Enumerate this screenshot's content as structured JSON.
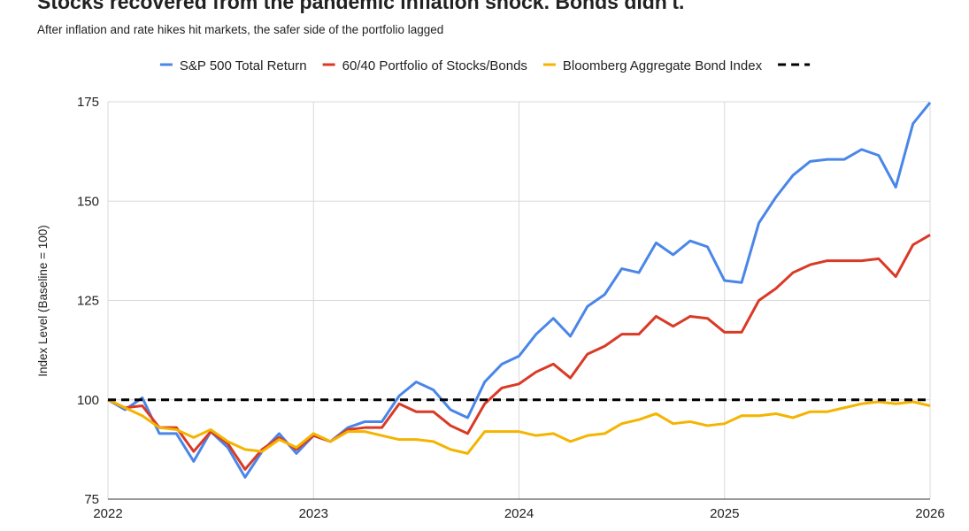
{
  "chart_data": {
    "type": "line",
    "title": "Stocks recovered from the pandemic inflation shock. Bonds didn't.",
    "subtitle": "After inflation and rate hikes hit markets, the safer side of the portfolio lagged",
    "y_label": "Index Level (Baseline = 100)",
    "x": [
      2022,
      2022.083,
      2022.167,
      2022.25,
      2022.333,
      2022.417,
      2022.5,
      2022.583,
      2022.667,
      2022.75,
      2022.833,
      2022.917,
      2023,
      2023.083,
      2023.167,
      2023.25,
      2023.333,
      2023.417,
      2023.5,
      2023.583,
      2023.667,
      2023.75,
      2023.833,
      2023.917,
      2024,
      2024.083,
      2024.167,
      2024.25,
      2024.333,
      2024.417,
      2024.5,
      2024.583,
      2024.667,
      2024.75,
      2024.833,
      2024.917,
      2025,
      2025.083,
      2025.167,
      2025.25,
      2025.333,
      2025.417,
      2025.5,
      2025.583,
      2025.667,
      2025.75,
      2025.833,
      2025.917,
      2026
    ],
    "series": [
      {
        "name": "S&P 500 Total Return",
        "color": "#4a86e8",
        "values": [
          100,
          97.5,
          100.5,
          91.5,
          91.5,
          84.5,
          92,
          88,
          80.5,
          87,
          91.5,
          86.5,
          91,
          89.5,
          93,
          94.5,
          94.5,
          101,
          104.5,
          102.5,
          97.5,
          95.5,
          104.5,
          109,
          111,
          116.5,
          120.5,
          116,
          123.5,
          126.5,
          133,
          132,
          139.5,
          136.5,
          140,
          138.5,
          130,
          129.5,
          144.5,
          151,
          156.5,
          160,
          160.5,
          160.5,
          163,
          161.5,
          153.5,
          169.5,
          174.8
        ]
      },
      {
        "name": "60/40 Portfolio of Stocks/Bonds",
        "color": "#d93a26",
        "values": [
          100,
          98,
          98.5,
          93,
          93,
          87,
          92,
          89,
          82.5,
          87.5,
          90.5,
          87.5,
          91,
          89.5,
          92.5,
          93,
          93,
          99,
          97,
          97,
          93.5,
          91.5,
          99,
          103,
          104,
          107,
          109,
          105.5,
          111.5,
          113.5,
          116.5,
          116.5,
          121,
          118.5,
          121,
          120.5,
          117,
          117,
          125,
          128,
          132,
          134,
          135,
          135,
          135,
          135.5,
          131,
          139,
          141.5
        ]
      },
      {
        "name": "Bloomberg Aggregate Bond Index",
        "color": "#f4b400",
        "values": [
          100,
          98,
          96,
          93,
          92.5,
          90.5,
          92.5,
          89.5,
          87.5,
          87,
          90,
          88,
          91.5,
          89.5,
          92,
          92,
          91,
          90,
          90,
          89.5,
          87.5,
          86.5,
          92,
          92,
          92,
          91,
          91.5,
          89.5,
          91,
          91.5,
          94,
          95,
          96.5,
          94,
          94.5,
          93.5,
          94,
          96,
          96,
          96.5,
          95.5,
          97,
          97,
          98,
          99,
          99.5,
          99,
          99.5,
          98.5
        ]
      }
    ],
    "reference_line": {
      "value": 100,
      "color": "#000000"
    },
    "xlim": [
      2022,
      2026
    ],
    "xticks": [
      2022,
      2023,
      2024,
      2025,
      2026
    ],
    "ylim": [
      75,
      175
    ],
    "yticks": [
      75,
      100,
      125,
      150,
      175
    ],
    "grid": true
  }
}
